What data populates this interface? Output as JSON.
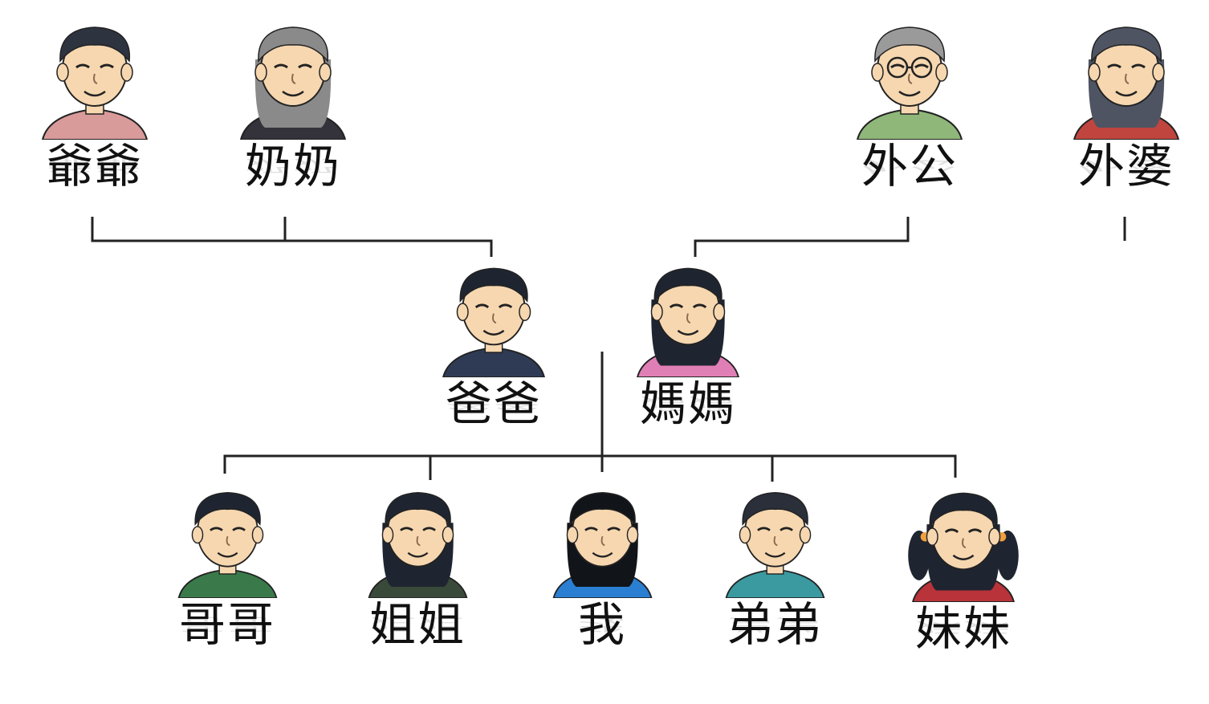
{
  "colors": {
    "line": "#222222",
    "skin": "#f6d7b0",
    "text": "#111111"
  },
  "family": {
    "grandpa_paternal": {
      "label": "爺爺",
      "icon": "grandpa-portrait-icon",
      "hair": "#2e3340",
      "shirt": "#d99a9a"
    },
    "grandma_paternal": {
      "label": "奶奶",
      "icon": "grandma-portrait-icon",
      "hair": "#8a8a8a",
      "shirt": "#34323a"
    },
    "grandpa_maternal": {
      "label": "外公",
      "icon": "grandpa-glasses-portrait-icon",
      "hair": "#9a9a9a",
      "shirt": "#8fb77a"
    },
    "grandma_maternal": {
      "label": "外婆",
      "icon": "grandma-portrait-icon",
      "hair": "#4e5462",
      "shirt": "#c0453f"
    },
    "father": {
      "label": "爸爸",
      "icon": "father-portrait-icon",
      "hair": "#1f2530",
      "shirt": "#2f3b55"
    },
    "mother": {
      "label": "媽媽",
      "icon": "mother-portrait-icon",
      "hair": "#1f2530",
      "shirt": "#e07fb6"
    },
    "older_brother": {
      "label": "哥哥",
      "icon": "boy-portrait-icon",
      "hair": "#1f2530",
      "shirt": "#3a7a4a"
    },
    "older_sister": {
      "label": "姐姐",
      "icon": "girl-portrait-icon",
      "hair": "#1f2530",
      "shirt": "#3a4a3a"
    },
    "me": {
      "label": "我",
      "icon": "girl-portrait-icon",
      "hair": "#111418",
      "shirt": "#2a7fd3"
    },
    "younger_brother": {
      "label": "弟弟",
      "icon": "boy-portrait-icon",
      "hair": "#2a2f3a",
      "shirt": "#3a9aa0"
    },
    "younger_sister": {
      "label": "妹妹",
      "icon": "girl-pigtails-portrait-icon",
      "hair": "#1f2530",
      "shirt": "#b8333a"
    }
  }
}
